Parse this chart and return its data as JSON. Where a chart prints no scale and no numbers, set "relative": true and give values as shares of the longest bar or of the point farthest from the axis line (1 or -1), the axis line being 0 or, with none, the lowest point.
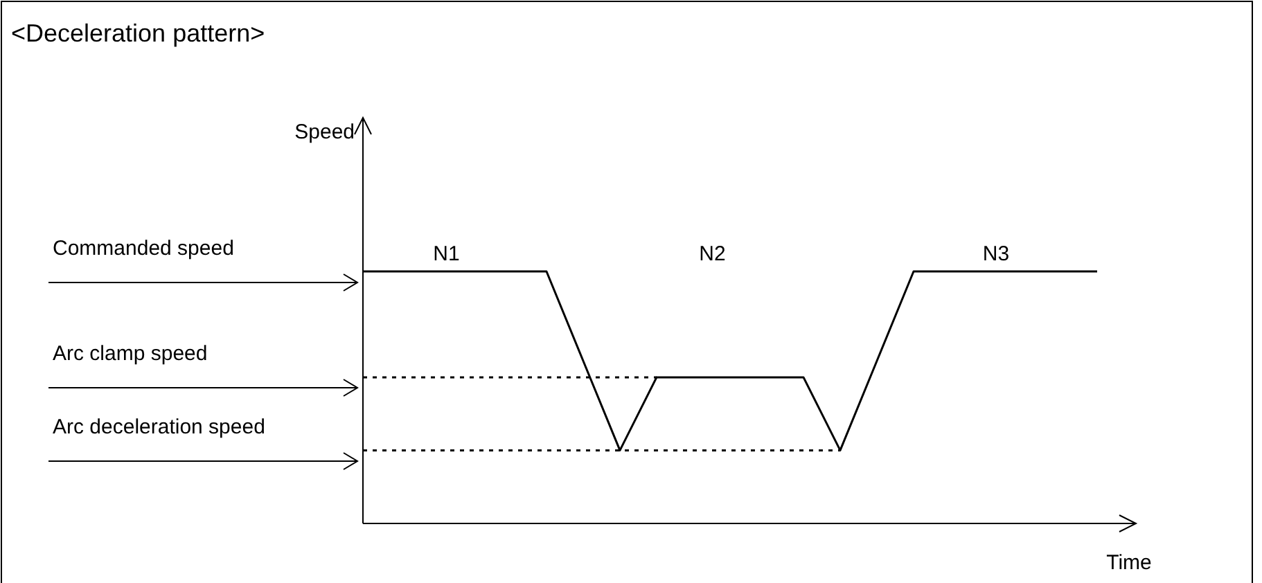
{
  "chart_data": {
    "type": "line",
    "relative": true,
    "title": "<Deceleration pattern>",
    "xlabel": "Time",
    "grid": false,
    "marker": "none",
    "categories": [
      null,
      null,
      null,
      null,
      null,
      null,
      null,
      null,
      null,
      null,
      null,
      null,
      null,
      null,
      null,
      null,
      null,
      null,
      null,
      null,
      null
    ],
    "series": [
      {
        "color": "#000000",
        "line_style": "solid",
        "values": [
          1,
          1,
          1,
          1,
          1,
          1,
          0.645,
          0.29,
          0.58,
          0.58,
          0.58,
          0.58,
          0.58,
          0.29,
          0.645,
          1,
          1,
          1,
          1,
          1,
          1
        ]
      },
      {
        "color": "#000000",
        "line_style": "dotted",
        "values": [
          0.58,
          0.58,
          0.58,
          0.58,
          0.58,
          0.58,
          0.58,
          0.58,
          0.58,
          null,
          null,
          null,
          null,
          null,
          null,
          null,
          null,
          null,
          null,
          null,
          null
        ]
      },
      {
        "color": "#000000",
        "line_style": "dotted",
        "values": [
          0.29,
          0.29,
          0.29,
          0.29,
          0.29,
          0.29,
          0.29,
          0.29,
          0.29,
          0.29,
          0.29,
          0.29,
          0.29,
          0.29,
          null,
          null,
          null,
          null,
          null,
          null,
          null
        ]
      }
    ],
    "annotations": [
      "Speed",
      "Commanded speed",
      "Arc clamp speed",
      "Arc deceleration speed",
      "N1",
      "N2",
      "N3"
    ]
  }
}
